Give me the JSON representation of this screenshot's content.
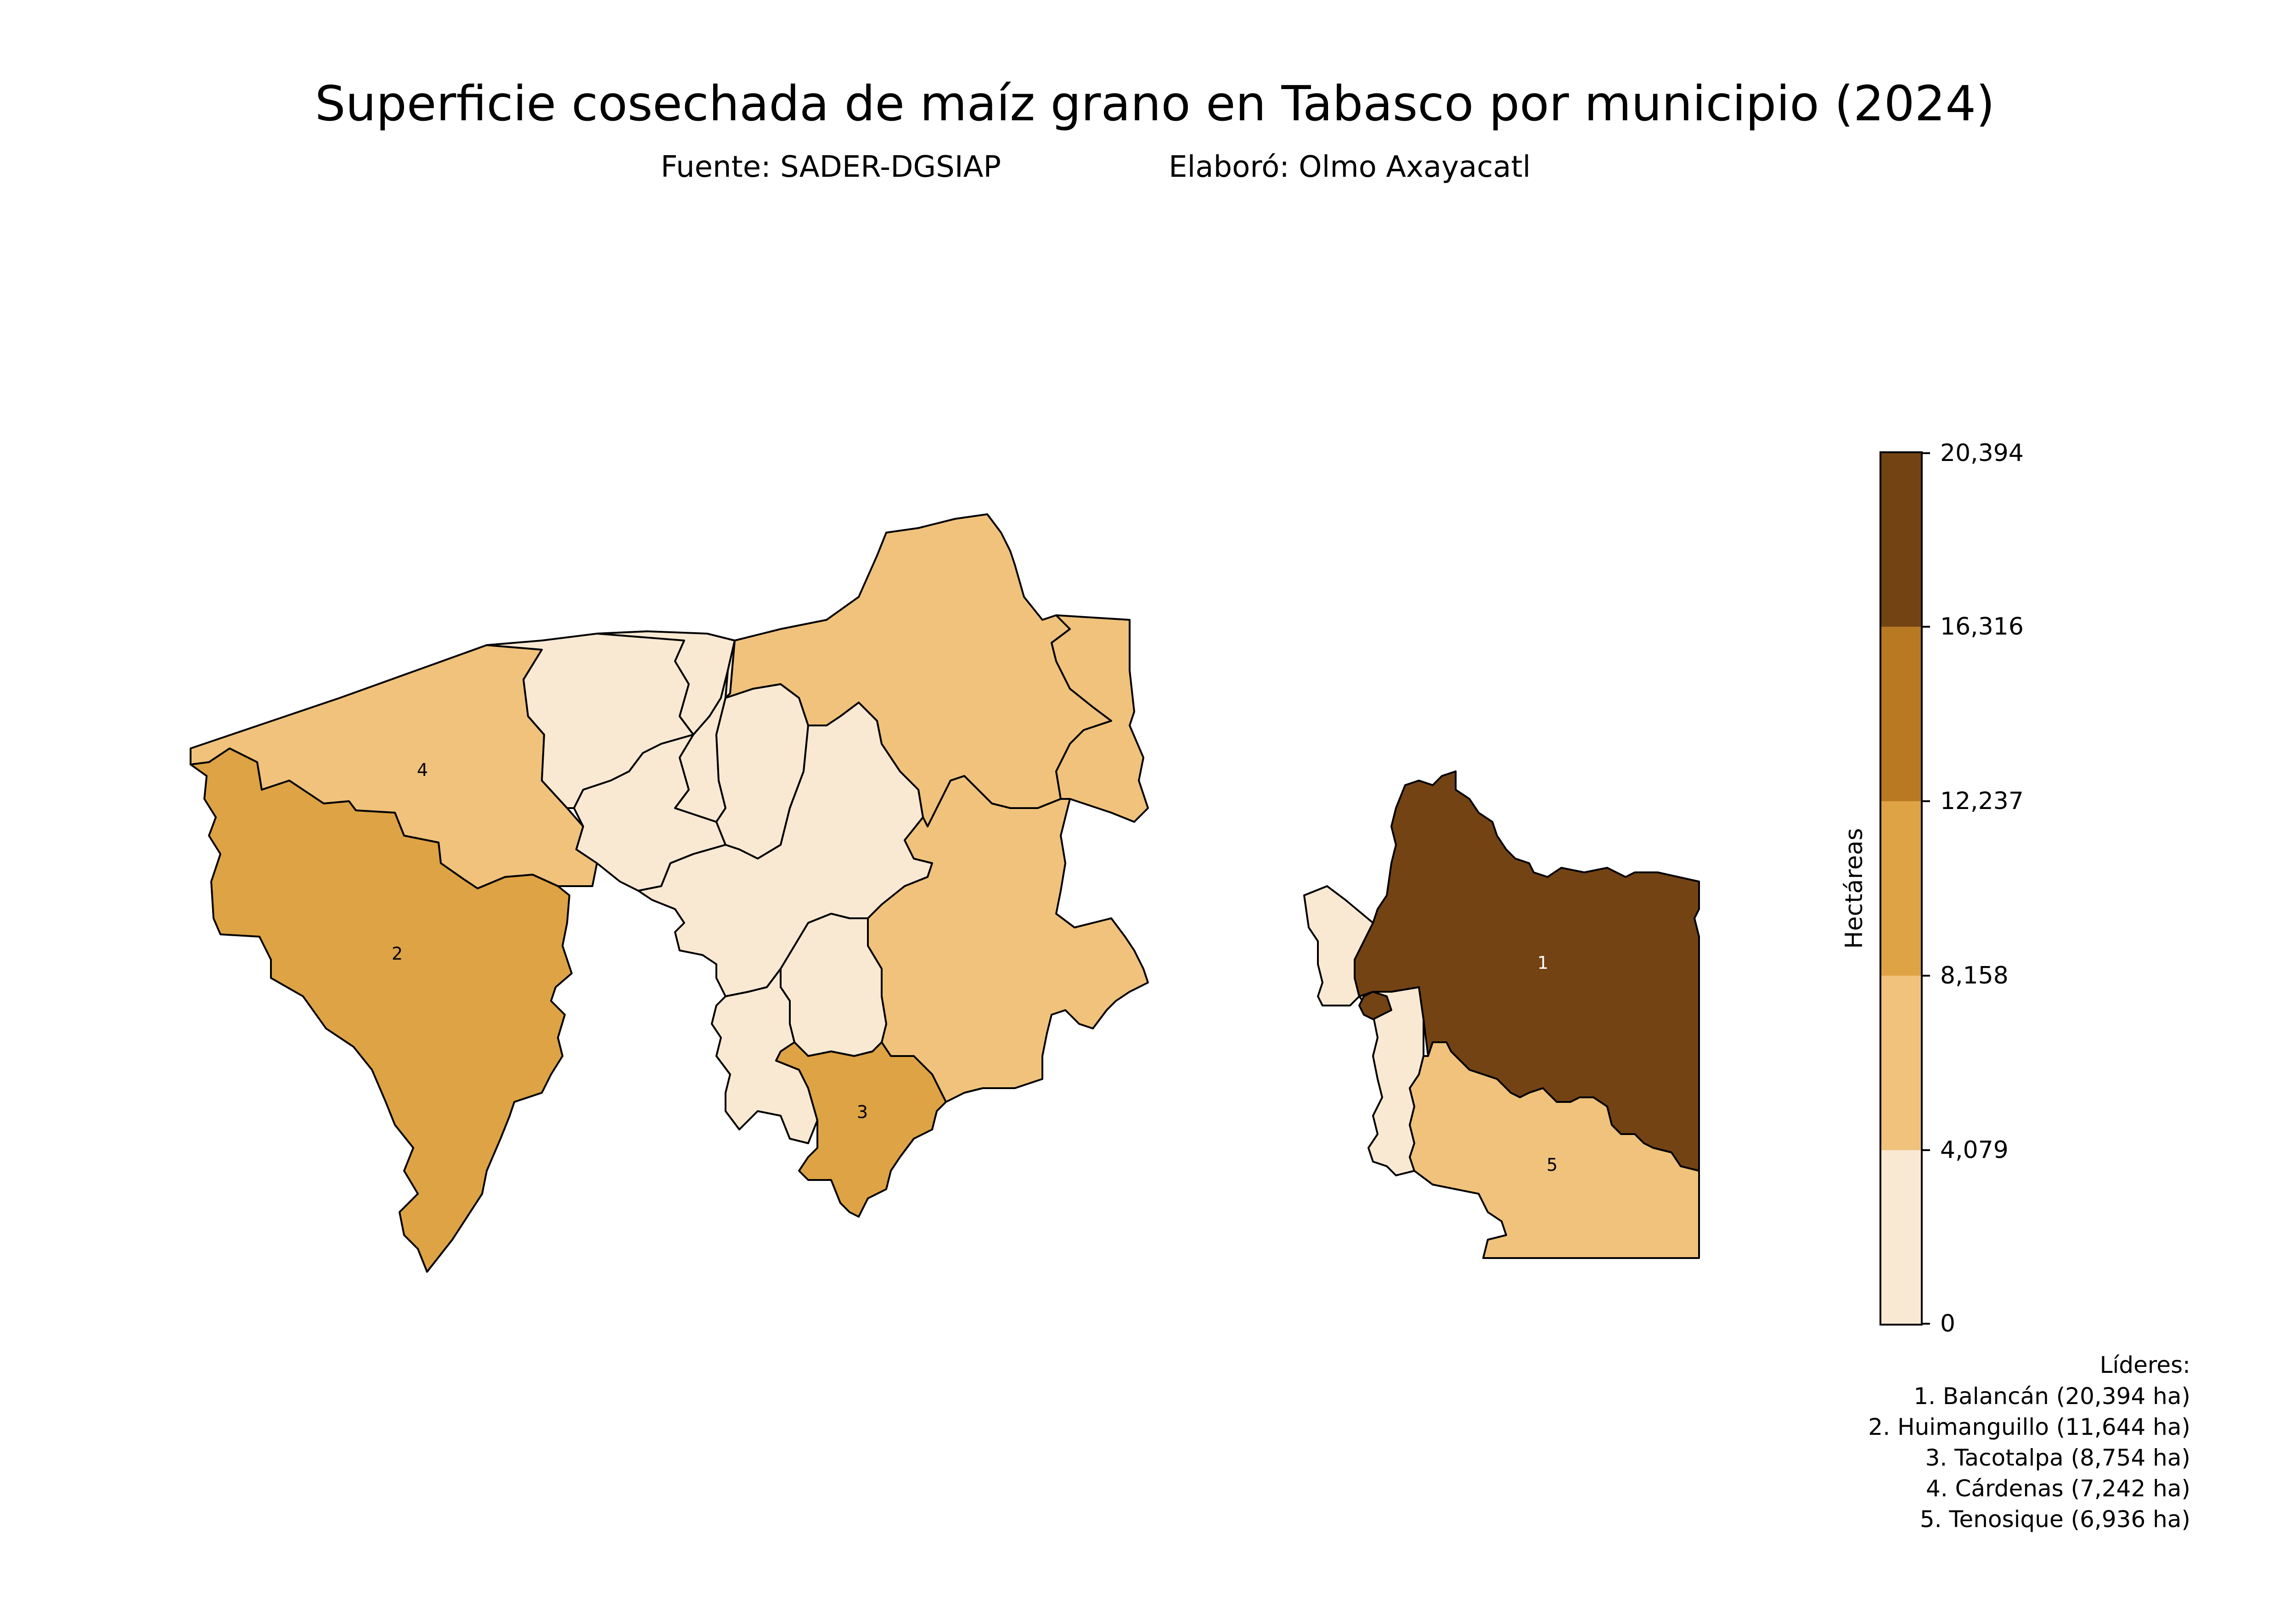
{
  "title": "Superficie cosechada de maíz grano en Tabasco por municipio (2024)",
  "subtitle_source": "Fuente: SADER-DGSIAP",
  "subtitle_author": "Elaboró: Olmo Axayacatl",
  "colors": {
    "bin0": "#f9e9d3",
    "bin1": "#f0c27c",
    "bin2": "#dea344",
    "bin3": "#b87922",
    "bin4": "#744314",
    "outline": "#000000"
  },
  "colorbar": {
    "label": "Hectáreas",
    "ticks": [
      "20,394",
      "16,316",
      "12,237",
      "8,158",
      "4,079",
      "0"
    ]
  },
  "map_labels": {
    "m1": "1",
    "m2": "2",
    "m3": "3",
    "m4": "4",
    "m5": "5"
  },
  "leaders": {
    "heading": "Líderes:",
    "items": [
      "1. Balancán (20,394 ha)",
      "2. Huimanguillo (11,644 ha)",
      "3. Tacotalpa (8,754 ha)",
      "4. Cárdenas (7,242 ha)",
      "5. Tenosique (6,936 ha)"
    ]
  }
}
